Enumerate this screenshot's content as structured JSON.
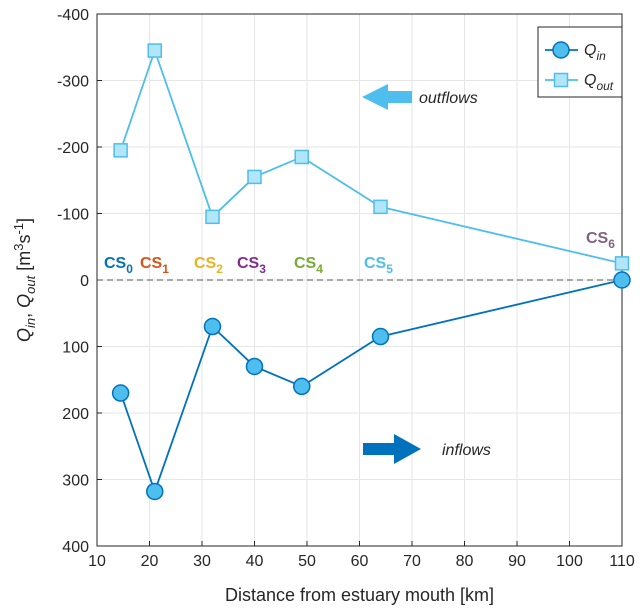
{
  "chart_data": {
    "type": "line",
    "xlabel": "Distance from estuary mouth [km]",
    "ylabel": [
      {
        "text": "Q",
        "shift": "none",
        "italic": true
      },
      {
        "text": "in",
        "shift": "sub",
        "italic": true
      },
      {
        "text": ", ",
        "shift": "none",
        "italic": false
      },
      {
        "text": "Q",
        "shift": "none",
        "italic": true
      },
      {
        "text": "out",
        "shift": "sub",
        "italic": true
      },
      {
        "text": " [m",
        "shift": "none",
        "italic": false
      },
      {
        "text": "3",
        "shift": "super",
        "italic": false
      },
      {
        "text": "s",
        "shift": "none",
        "italic": false
      },
      {
        "text": "-1",
        "shift": "super",
        "italic": false
      },
      {
        "text": "]",
        "shift": "none",
        "italic": false
      }
    ],
    "x": [
      14.5,
      21,
      32,
      40,
      49,
      64,
      110
    ],
    "series": [
      {
        "name": "Q",
        "name_sub": "in",
        "color": "#0072bd",
        "marker": "circle",
        "marker_color": "#4dbeee",
        "values": [
          170,
          318,
          70,
          130,
          160,
          85,
          0
        ]
      },
      {
        "name": "Q",
        "name_sub": "out",
        "color": "#4dbeee",
        "marker": "square",
        "marker_color": "#b0e6f8",
        "values": [
          -195,
          -345,
          -95,
          -155,
          -185,
          -110,
          -25
        ]
      }
    ],
    "xlim": [
      10,
      110
    ],
    "xticks": [
      10,
      20,
      30,
      40,
      50,
      60,
      70,
      80,
      90,
      100,
      110
    ],
    "ylim": [
      -400,
      400
    ],
    "yticks": [
      -400,
      -300,
      -200,
      -100,
      0,
      100,
      200,
      300,
      400
    ],
    "y_reversed": true,
    "grid": true,
    "zero_line": true,
    "legend": "top-right",
    "annotations": [
      {
        "text": "CS",
        "sub": "0",
        "color": "#0072bd"
      },
      {
        "text": "CS",
        "sub": "1",
        "color": "#d95319"
      },
      {
        "text": "CS",
        "sub": "2",
        "color": "#edb120"
      },
      {
        "text": "CS",
        "sub": "3",
        "color": "#7e2f8e"
      },
      {
        "text": "CS",
        "sub": "4",
        "color": "#77ac30"
      },
      {
        "text": "CS",
        "sub": "5",
        "color": "#4dbeee"
      },
      {
        "text": "CS",
        "sub": "6",
        "color": "#7f6280"
      },
      {
        "text": "outflows",
        "color": "#4dbeee"
      },
      {
        "text": "inflows",
        "color": "#0072bd"
      }
    ]
  }
}
